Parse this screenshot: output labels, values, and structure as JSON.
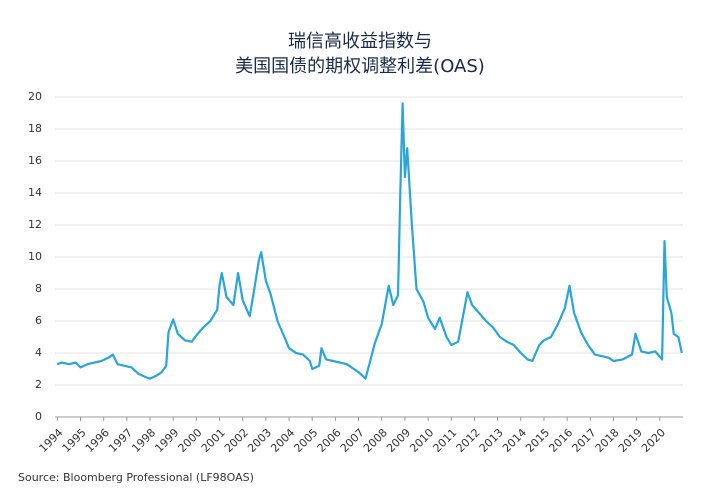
{
  "chart_data": {
    "type": "line",
    "title": [
      "瑞信高收益指数与",
      "美国国债的期权调整利差(OAS)"
    ],
    "source": "Source: Bloomberg Professional (LF98OAS)",
    "x": [
      1994.0,
      1994.2,
      1994.5,
      1994.8,
      1995.0,
      1995.3,
      1995.6,
      1995.9,
      1996.2,
      1996.4,
      1996.6,
      1996.9,
      1997.2,
      1997.5,
      1997.8,
      1998.0,
      1998.3,
      1998.5,
      1998.7,
      1998.8,
      1999.0,
      1999.2,
      1999.5,
      1999.8,
      2000.0,
      2000.3,
      2000.6,
      2000.9,
      2001.0,
      2001.1,
      2001.3,
      2001.6,
      2001.8,
      2002.0,
      2002.3,
      2002.5,
      2002.7,
      2002.8,
      2003.0,
      2003.2,
      2003.5,
      2003.8,
      2004.0,
      2004.3,
      2004.6,
      2004.9,
      2005.0,
      2005.3,
      2005.4,
      2005.6,
      2005.9,
      2006.2,
      2006.5,
      2006.8,
      2007.0,
      2007.3,
      2007.5,
      2007.7,
      2008.0,
      2008.3,
      2008.5,
      2008.7,
      2008.8,
      2008.9,
      2009.0,
      2009.1,
      2009.3,
      2009.5,
      2009.8,
      2010.0,
      2010.3,
      2010.5,
      2010.8,
      2011.0,
      2011.3,
      2011.7,
      2011.9,
      2012.2,
      2012.5,
      2012.8,
      2013.1,
      2013.4,
      2013.7,
      2014.0,
      2014.3,
      2014.5,
      2014.8,
      2015.0,
      2015.3,
      2015.6,
      2015.9,
      2016.1,
      2016.3,
      2016.6,
      2016.9,
      2017.2,
      2017.5,
      2017.8,
      2018.0,
      2018.4,
      2018.8,
      2018.95,
      2019.2,
      2019.5,
      2019.8,
      2020.1,
      2020.2,
      2020.3,
      2020.5,
      2020.6,
      2020.8,
      2020.95
    ],
    "series": [
      {
        "name": "OAS",
        "color": "#2aa5d8",
        "values": [
          3.3,
          3.4,
          3.3,
          3.4,
          3.1,
          3.3,
          3.4,
          3.5,
          3.7,
          3.9,
          3.3,
          3.2,
          3.1,
          2.7,
          2.5,
          2.4,
          2.6,
          2.8,
          3.2,
          5.3,
          6.1,
          5.2,
          4.8,
          4.7,
          5.1,
          5.6,
          6.0,
          6.7,
          8.2,
          9.0,
          7.5,
          7.0,
          9.0,
          7.3,
          6.3,
          8.0,
          9.8,
          10.3,
          8.5,
          7.7,
          6.0,
          5.0,
          4.3,
          4.0,
          3.9,
          3.5,
          3.0,
          3.2,
          4.3,
          3.6,
          3.5,
          3.4,
          3.3,
          3.0,
          2.8,
          2.4,
          3.5,
          4.6,
          5.8,
          8.2,
          7.0,
          7.6,
          14.0,
          19.6,
          15.0,
          16.8,
          12.0,
          8.0,
          7.2,
          6.2,
          5.5,
          6.2,
          5.0,
          4.5,
          4.7,
          7.8,
          7.0,
          6.5,
          6.0,
          5.6,
          5.0,
          4.7,
          4.5,
          4.0,
          3.6,
          3.5,
          4.5,
          4.8,
          5.0,
          5.8,
          6.8,
          8.2,
          6.5,
          5.3,
          4.5,
          3.9,
          3.8,
          3.7,
          3.5,
          3.6,
          3.9,
          5.2,
          4.1,
          4.0,
          4.1,
          3.6,
          11.0,
          7.5,
          6.5,
          5.2,
          5.0,
          4.0
        ]
      }
    ],
    "xlim": [
      1993.9,
      2021.0
    ],
    "xticks": [
      1994,
      1995,
      1996,
      1997,
      1998,
      1999,
      2000,
      2001,
      2002,
      2003,
      2004,
      2005,
      2006,
      2007,
      2008,
      2009,
      2010,
      2011,
      2012,
      2013,
      2014,
      2015,
      2016,
      2017,
      2018,
      2019,
      2020
    ],
    "ylim": [
      0,
      20
    ],
    "yticks": [
      0,
      2,
      4,
      6,
      8,
      10,
      12,
      14,
      16,
      18,
      20
    ],
    "grid": true
  }
}
